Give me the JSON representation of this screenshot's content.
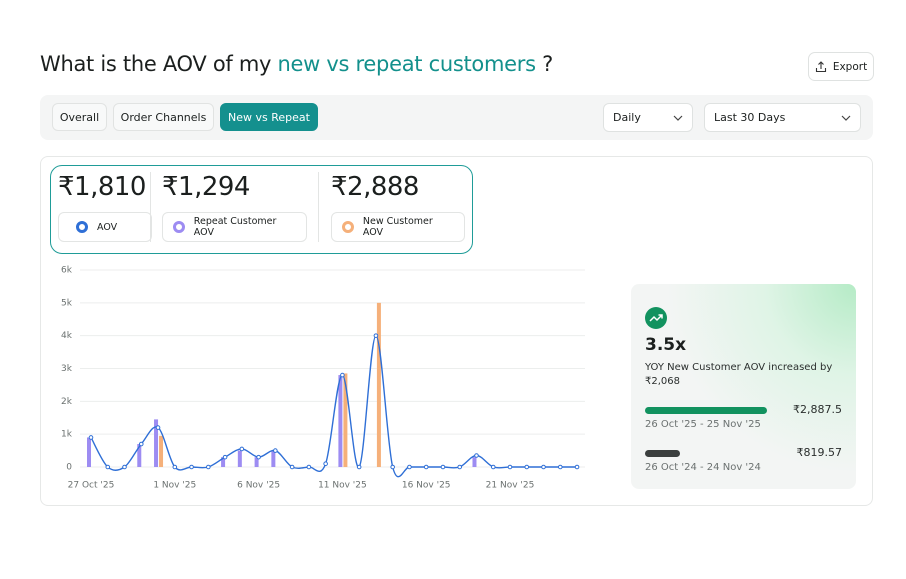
{
  "header": {
    "title_prefix": "What is the AOV of my",
    "title_highlight": "new vs repeat customers",
    "title_suffix": "?",
    "export": "Export"
  },
  "tabs": [
    "Overall",
    "Order Channels",
    "New vs Repeat"
  ],
  "dropdowns": [
    "Daily",
    "Last 30 Days"
  ],
  "kpis": [
    "₹1,810",
    "₹1,294",
    "₹2,888"
  ],
  "chart_data": {
    "type": "bar-line",
    "categories": [
      "27 Oct '25",
      null,
      null,
      null,
      null,
      "1 Nov '25",
      null,
      null,
      null,
      null,
      "6 Nov '25",
      null,
      null,
      null,
      null,
      "11 Nov '25",
      null,
      null,
      null,
      null,
      "16 Nov '25",
      null,
      null,
      null,
      null,
      "21 Nov '25",
      null,
      null,
      null,
      null
    ],
    "series": [
      {
        "name": "AOV",
        "type": "line",
        "color": "#2f6fd6",
        "values": [
          900,
          0,
          0,
          700,
          1200,
          0,
          0,
          0,
          300,
          550,
          300,
          500,
          0,
          0,
          100,
          2800,
          0,
          4000,
          0,
          0,
          0,
          0,
          0,
          350,
          0,
          0,
          0,
          0,
          0,
          0
        ]
      },
      {
        "name": "Repeat Customer AOV",
        "type": "bar",
        "color": "#9d8cf2",
        "values": [
          900,
          0,
          0,
          700,
          1450,
          0,
          0,
          0,
          300,
          500,
          300,
          500,
          0,
          0,
          0,
          2800,
          0,
          0,
          0,
          0,
          0,
          0,
          0,
          300,
          0,
          0,
          0,
          0,
          0,
          0
        ]
      },
      {
        "name": "New Customer AOV",
        "type": "bar",
        "color": "#f5b07a",
        "values": [
          0,
          0,
          0,
          0,
          950,
          0,
          0,
          0,
          0,
          0,
          0,
          0,
          0,
          0,
          0,
          2850,
          0,
          5000,
          0,
          0,
          0,
          0,
          0,
          0,
          0,
          0,
          0,
          0,
          0,
          0
        ]
      }
    ],
    "ylim": [
      0,
      6000
    ],
    "yticks": [
      0,
      {
        "value": 1000,
        "label": "1k"
      },
      {
        "value": 2000,
        "label": "2k"
      },
      {
        "value": 3000,
        "label": "3k"
      },
      {
        "value": 4000,
        "label": "4k"
      },
      {
        "value": 5000,
        "label": "5k"
      },
      {
        "value": 6000,
        "label": "6k"
      }
    ],
    "grid": true
  },
  "insight": {
    "multiplier": "3.5x",
    "text": "YOY New Customer AOV increased by ₹2,068",
    "bars": [
      {
        "value": 2887.5,
        "label": "₹2,887.5",
        "period": "26 Oct '25 - 25 Nov '25",
        "color": "#12925f"
      },
      {
        "value": 819.57,
        "label": "₹819.57",
        "period": "26 Oct '24 - 24 Nov '24",
        "color": "#3b3f3e"
      }
    ]
  }
}
